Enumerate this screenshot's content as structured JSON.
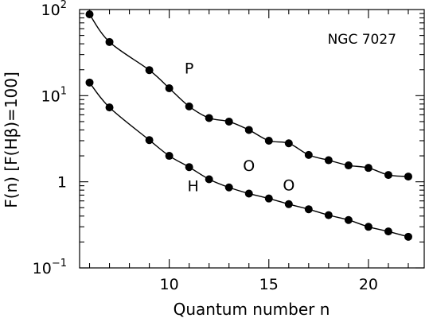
{
  "chart_data": {
    "type": "scatter",
    "title": "",
    "annotation": "NGC 7027",
    "xlabel": "Quantum number n",
    "ylabel": "F(n) [F(Hβ)=100]",
    "xscale": "linear",
    "yscale": "log",
    "xlim": [
      5.5,
      22.8
    ],
    "ylim": [
      0.1,
      100
    ],
    "x_ticks": [
      10,
      15,
      20
    ],
    "x_tick_labels": [
      "10",
      "15",
      "20"
    ],
    "y_ticks": [
      0.1,
      1,
      10,
      100
    ],
    "y_tick_labels": [
      {
        "base": "10",
        "exp": "−1"
      },
      {
        "base": "1",
        "exp": ""
      },
      {
        "base": "10",
        "exp": "1"
      },
      {
        "base": "10",
        "exp": "2"
      }
    ],
    "series": [
      {
        "name": "P",
        "marker": "filled-circle",
        "connected": true,
        "x": [
          6,
          7,
          9,
          10,
          11,
          12,
          13,
          14,
          15,
          16,
          17,
          18,
          19,
          20,
          21,
          22
        ],
        "y": [
          88,
          42,
          19.8,
          12.2,
          7.5,
          5.5,
          5.0,
          4.0,
          3.0,
          2.8,
          2.05,
          1.78,
          1.55,
          1.45,
          1.2,
          1.15
        ]
      },
      {
        "name": "H",
        "marker": "filled-circle",
        "connected": true,
        "x": [
          6,
          7,
          9,
          10,
          11,
          12,
          13,
          14,
          15,
          16,
          17,
          18,
          19,
          20,
          21,
          22
        ],
        "y": [
          14.2,
          7.3,
          3.05,
          2.0,
          1.48,
          1.07,
          0.86,
          0.73,
          0.64,
          0.55,
          0.48,
          0.41,
          0.36,
          0.3,
          0.265,
          0.23
        ]
      },
      {
        "name": "O",
        "marker": "open-circle",
        "connected": false,
        "x": [
          14,
          16
        ],
        "y": [
          1.55,
          0.92
        ]
      }
    ],
    "series_labels": [
      {
        "text": "P",
        "x": 11.0,
        "y": 21
      },
      {
        "text": "H",
        "x": 11.2,
        "y": 0.9
      },
      {
        "text": "O",
        "x": 14.0,
        "y": 1.55
      },
      {
        "text": "O",
        "x": 16.0,
        "y": 0.92
      }
    ],
    "grid": false,
    "legend": "none"
  }
}
